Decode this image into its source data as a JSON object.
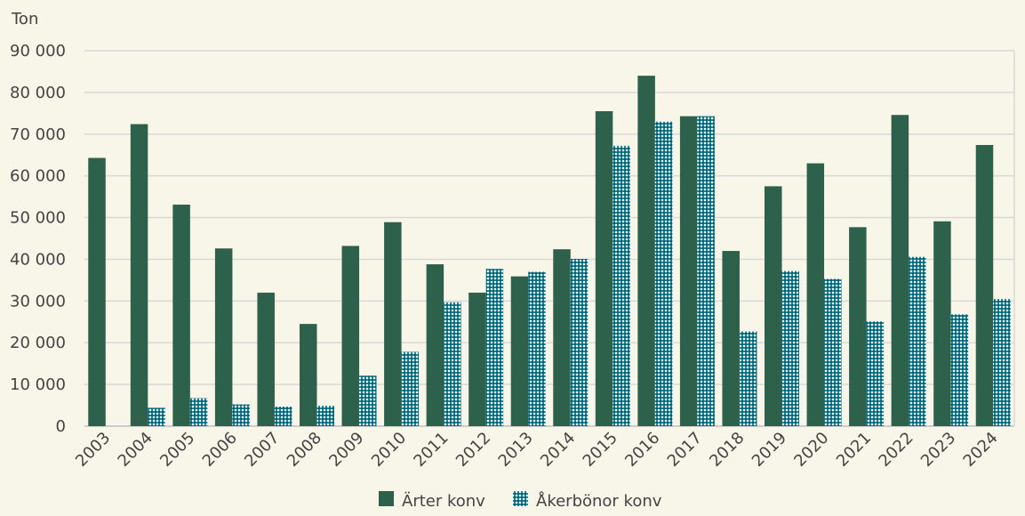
{
  "chart_data": {
    "type": "bar",
    "title": "",
    "ylabel": "Ton",
    "xlabel": "",
    "ylim": [
      0,
      90000
    ],
    "yticks": [
      0,
      10000,
      20000,
      30000,
      40000,
      50000,
      60000,
      70000,
      80000,
      90000
    ],
    "ytick_labels": [
      "0",
      "10 000",
      "20 000",
      "30 000",
      "40 000",
      "50 000",
      "60 000",
      "70 000",
      "80 000",
      "90 000"
    ],
    "grid": true,
    "legend_position": "bottom",
    "categories": [
      "2003",
      "2004",
      "2005",
      "2006",
      "2007",
      "2008",
      "2009",
      "2010",
      "2011",
      "2012",
      "2013",
      "2014",
      "2015",
      "2016",
      "2017",
      "2018",
      "2019",
      "2020",
      "2021",
      "2022",
      "2023",
      "2024"
    ],
    "series": [
      {
        "name": "Ärter konv",
        "color": "#2e614c",
        "pattern": "solid",
        "values": [
          64300,
          72400,
          53100,
          42600,
          32000,
          24500,
          43200,
          48900,
          38800,
          32000,
          35900,
          42400,
          75500,
          84000,
          74300,
          42000,
          57500,
          63000,
          47700,
          74600,
          49100,
          67400
        ]
      },
      {
        "name": "Åkerbönor konv",
        "color": "#1a8aa0",
        "pattern": "dotted",
        "values": [
          0,
          4400,
          6700,
          5200,
          4700,
          4900,
          12100,
          17800,
          29700,
          37700,
          37000,
          40100,
          67200,
          73000,
          74300,
          22700,
          37200,
          35300,
          25100,
          40600,
          26800,
          30500
        ]
      }
    ]
  }
}
